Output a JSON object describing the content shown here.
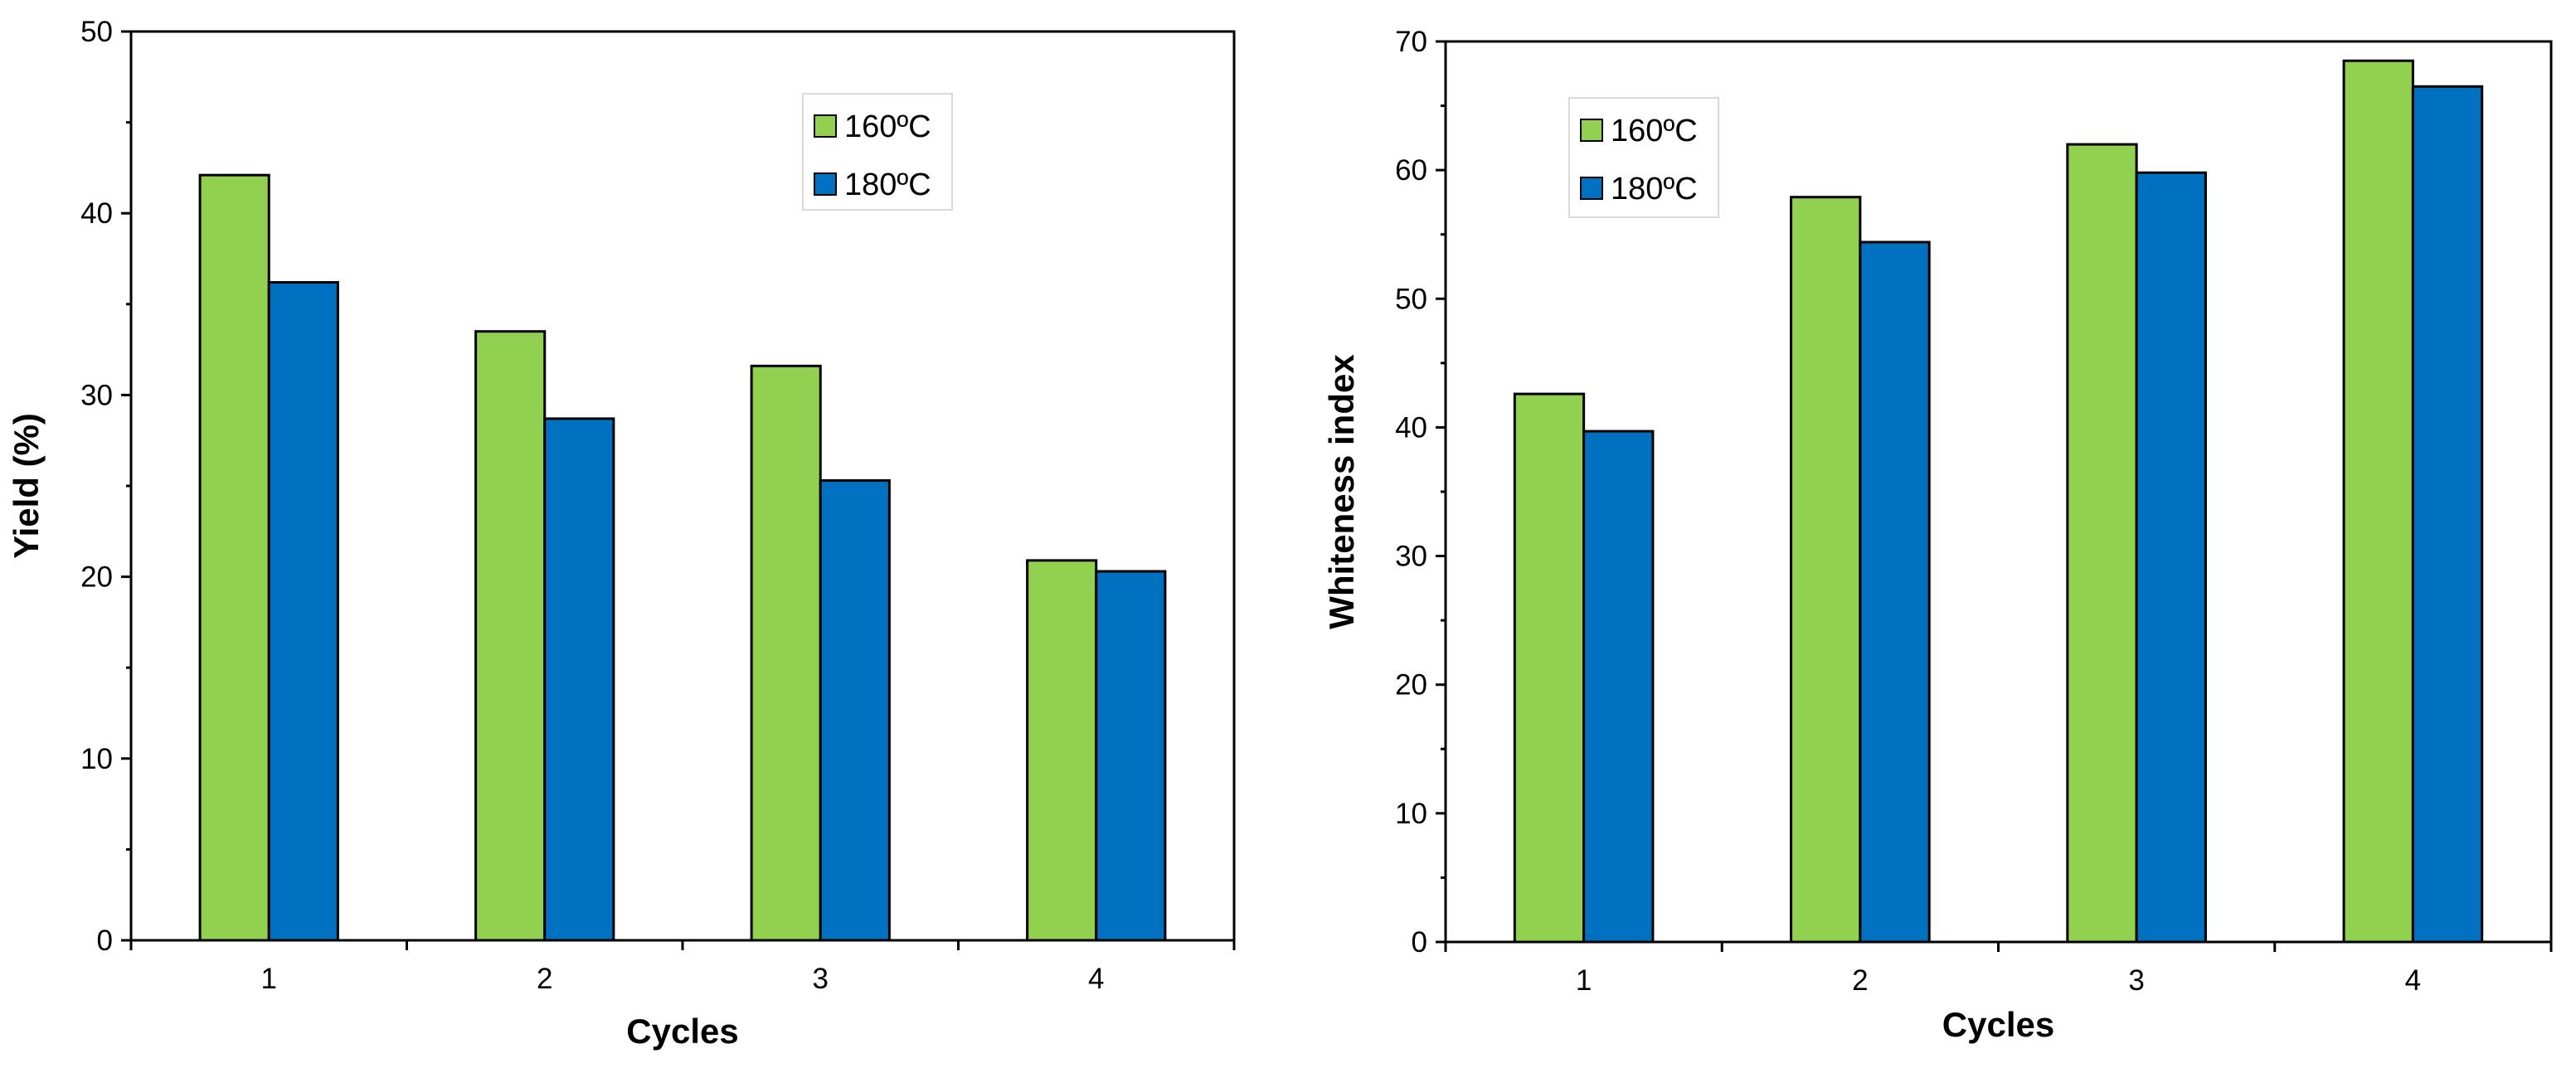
{
  "chart_data": [
    {
      "type": "bar",
      "title": "",
      "xlabel": "Cycles",
      "ylabel": "Yield  (%)",
      "categories": [
        "1",
        "2",
        "3",
        "4"
      ],
      "ylim": [
        0,
        50
      ],
      "yticks": [
        0,
        10,
        20,
        30,
        40,
        50
      ],
      "grid": false,
      "legend_position": "top-right",
      "series": [
        {
          "name": "160ºC",
          "color": "#92D050",
          "values": [
            42.1,
            33.5,
            31.6,
            20.9
          ]
        },
        {
          "name": "180ºC",
          "color": "#0070C0",
          "values": [
            36.2,
            28.7,
            25.3,
            20.3
          ]
        }
      ]
    },
    {
      "type": "bar",
      "title": "",
      "xlabel": "Cycles",
      "ylabel": "Whiteness index",
      "categories": [
        "1",
        "2",
        "3",
        "4"
      ],
      "ylim": [
        0,
        70
      ],
      "yticks": [
        0,
        10,
        20,
        30,
        40,
        50,
        60,
        70
      ],
      "grid": false,
      "legend_position": "top-left",
      "series": [
        {
          "name": "160ºC",
          "color": "#92D050",
          "values": [
            42.6,
            57.9,
            62.0,
            68.5
          ]
        },
        {
          "name": "180ºC",
          "color": "#0070C0",
          "values": [
            39.7,
            54.4,
            59.8,
            66.5
          ]
        }
      ]
    }
  ]
}
